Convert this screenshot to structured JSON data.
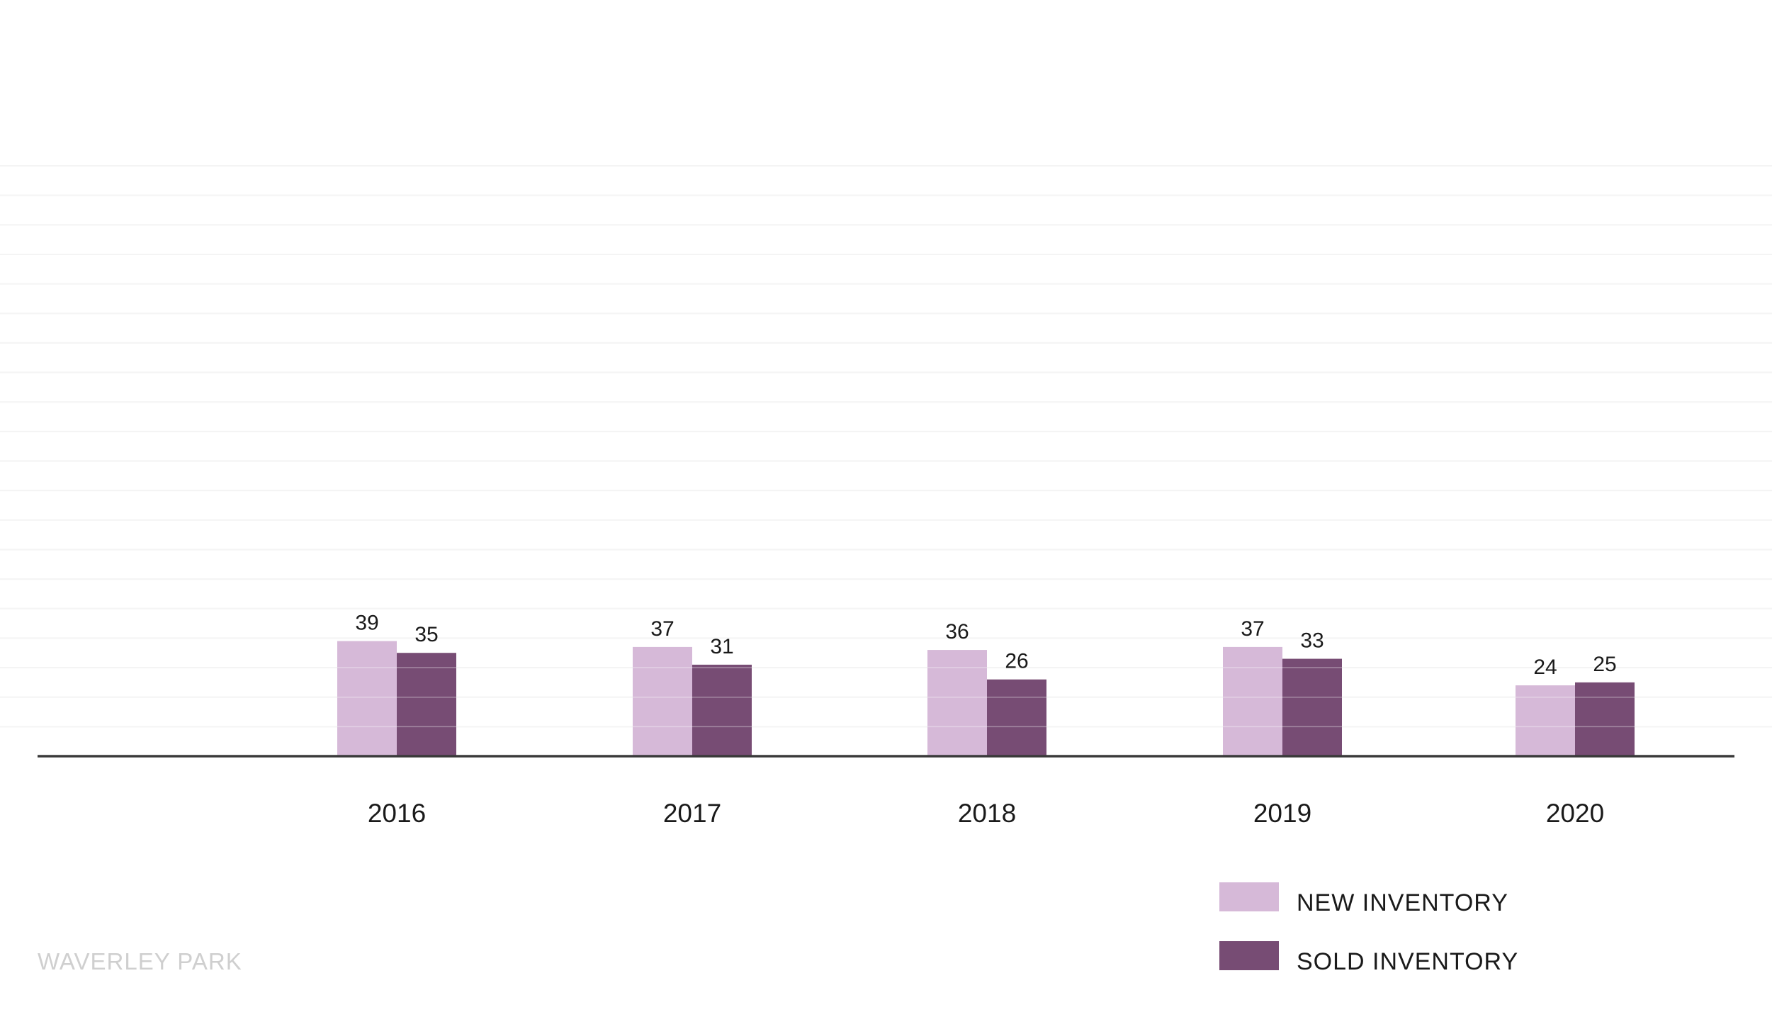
{
  "chart_data": {
    "type": "bar",
    "categories": [
      "2016",
      "2017",
      "2018",
      "2019",
      "2020"
    ],
    "series": [
      {
        "name": "NEW INVENTORY",
        "values": [
          39,
          37,
          36,
          37,
          24
        ],
        "color": "#d6b9d8"
      },
      {
        "name": "SOLD INVENTORY",
        "values": [
          35,
          31,
          26,
          33,
          25
        ],
        "color": "#774c74"
      }
    ],
    "ylim": [
      0,
      200
    ],
    "grid": true,
    "legend_position": "bottom-right",
    "title": "",
    "xlabel": "",
    "ylabel": ""
  },
  "watermark": "WAVERLEY PARK"
}
